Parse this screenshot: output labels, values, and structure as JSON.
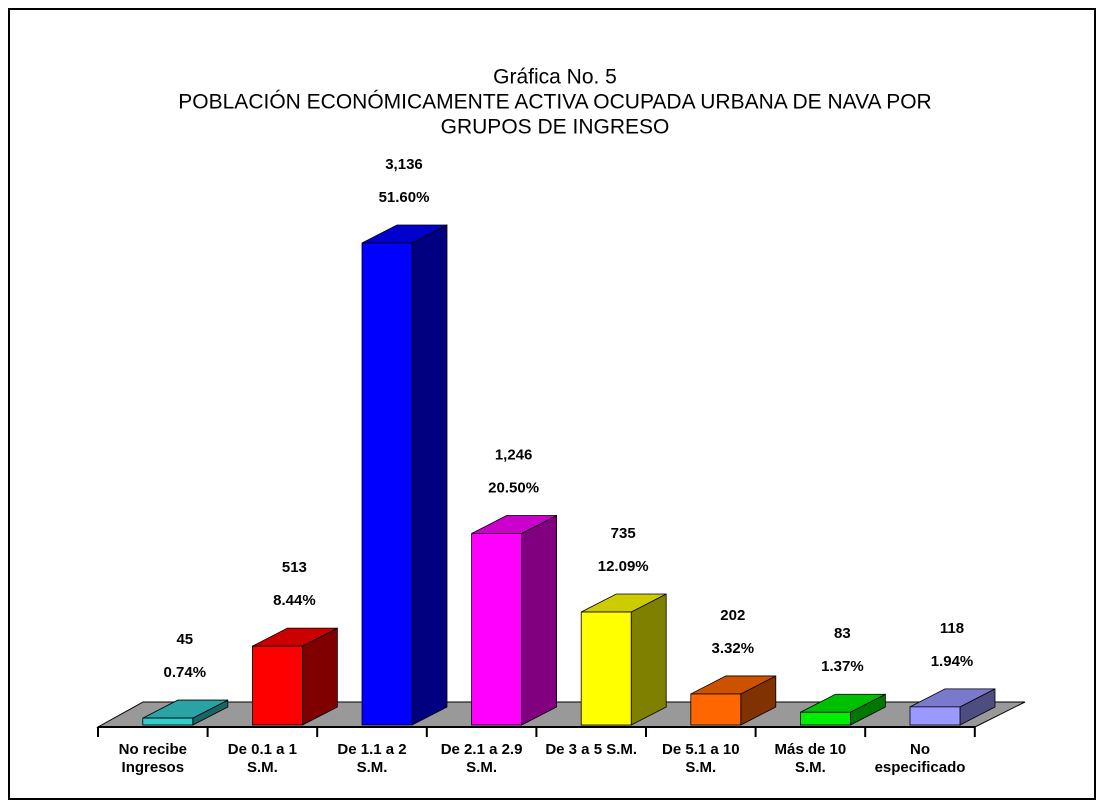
{
  "chart_data": {
    "type": "bar3d",
    "title": [
      "Gráfica No. 5",
      "POBLACIÓN ECONÓMICAMENTE ACTIVA OCUPADA URBANA DE NAVA POR",
      "GRUPOS DE INGRESO"
    ],
    "categories": [
      [
        "No recibe",
        "Ingresos"
      ],
      [
        "De 0.1 a 1",
        "S.M."
      ],
      [
        "De 1.1 a 2",
        "S.M."
      ],
      [
        "De 2.1 a 2.9",
        "S.M."
      ],
      [
        "De 3 a 5 S.M."
      ],
      [
        "De 5.1 a 10",
        "S.M."
      ],
      [
        "Más de 10",
        "S.M."
      ],
      [
        "No",
        "especificado"
      ]
    ],
    "values": [
      45,
      513,
      3136,
      1246,
      735,
      202,
      83,
      118
    ],
    "value_labels": [
      "45",
      "513",
      "3,136",
      "1,246",
      "735",
      "202",
      "83",
      "118"
    ],
    "percents": [
      0.74,
      8.44,
      51.6,
      20.5,
      12.09,
      3.32,
      1.37,
      1.94
    ],
    "percent_labels": [
      "0.74%",
      "8.44%",
      "51.60%",
      "20.50%",
      "12.09%",
      "3.32%",
      "1.37%",
      "1.94%"
    ],
    "colors": [
      "#33cccc",
      "#ff0000",
      "#0000ff",
      "#ff00ff",
      "#ffff00",
      "#ff6600",
      "#00ee00",
      "#9999ff"
    ]
  }
}
